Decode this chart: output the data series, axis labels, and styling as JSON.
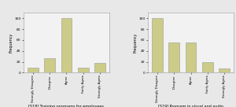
{
  "chart1": {
    "title": "[S18] Training programs for employees",
    "categories": [
      "Strongly Disagree",
      "Disagree",
      "Agree",
      "Fairly Agree",
      "Strongly Agree"
    ],
    "values": [
      10,
      26,
      100,
      10,
      18
    ],
    "bar_color": "#cccc88",
    "ylabel": "Frequency",
    "ylim": [
      0,
      110
    ],
    "yticks": [
      0,
      20,
      40,
      60,
      80,
      100
    ]
  },
  "chart2": {
    "title": "[S19] Program in visual and audio",
    "categories": [
      "Strongly Disagree",
      "Disagree",
      "Agree",
      "Fairly Agree",
      "Strongly Agree"
    ],
    "values": [
      100,
      55,
      55,
      20,
      8
    ],
    "bar_color": "#cccc88",
    "ylabel": "Frequency",
    "ylim": [
      0,
      110
    ],
    "yticks": [
      0,
      20,
      40,
      60,
      80,
      100
    ]
  },
  "bg_color": "#e8e8e8",
  "plot_bg": "#f2f2f2",
  "border_color": "#999999"
}
